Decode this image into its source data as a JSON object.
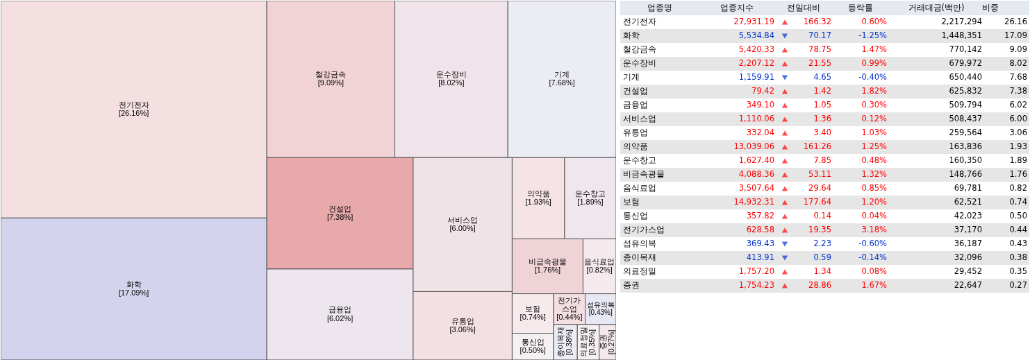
{
  "chart_data": [
    {
      "type": "other",
      "categories": [
        "전기전자",
        "화학",
        "철강금속",
        "운수장비",
        "기계",
        "건설업",
        "금융업",
        "서비스업",
        "유통업",
        "의약품",
        "운수창고",
        "비금속광물",
        "음식료업",
        "보험",
        "통신업",
        "전기가스업",
        "섬유의복",
        "종이목재",
        "의료정밀",
        "증권"
      ],
      "values": [
        26.16,
        17.09,
        9.09,
        8.02,
        7.68,
        7.38,
        6.02,
        6.0,
        3.06,
        1.93,
        1.89,
        1.76,
        0.82,
        0.74,
        0.5,
        0.44,
        0.43,
        0.38,
        0.35,
        0.27
      ],
      "value_labels": [
        "[26.16%]",
        "[17.09%]",
        "[9.09%]",
        "[8.02%]",
        "[7.68%]",
        "[7.38%]",
        "[6.02%]",
        "[6.00%]",
        "[3.06%]",
        "[1.93%]",
        "[1.89%]",
        "[1.76%]",
        "[0.82%]",
        "[0.74%]",
        "[0.50%]",
        "[0.44%]",
        "[0.43%]",
        "[0.38%]",
        "[0.35%]",
        "[0.27%]"
      ],
      "colors": [
        "#f4dfe1",
        "#d3d3ee",
        "#f2d3d5",
        "#f1e3ea",
        "#ececf4",
        "#e8a9aa",
        "#eee6ef",
        "#f0e3e8",
        "#f3e0e2",
        "#f5e3e5",
        "#f0e7ee",
        "#efd3d6",
        "#f4eaee",
        "#f6eaec",
        "#f5f1f3",
        "#f3dfe2",
        "#e8e8f4",
        "#ececf4",
        "#f6f0f2",
        "#f4e8ea"
      ]
    },
    {
      "type": "other",
      "xlabel": "업종명",
      "categories": [
        "전기전자",
        "화학",
        "철강금속",
        "운수장비",
        "기계",
        "건설업",
        "금융업",
        "서비스업",
        "유통업",
        "의약품",
        "운수창고",
        "비금속광물",
        "음식료업",
        "보험",
        "통신업",
        "전기가스업",
        "섬유의복",
        "종이목재",
        "의료정밀",
        "증권"
      ],
      "series": [
        {
          "name": "업종지수",
          "colors": [
            "#ff0000",
            "#0033cc",
            "#ff0000",
            "#ff0000",
            "#0033cc",
            "#ff0000",
            "#ff0000",
            "#ff0000",
            "#ff0000",
            "#ff0000",
            "#ff0000",
            "#ff0000",
            "#ff0000",
            "#ff0000",
            "#ff0000",
            "#ff0000",
            "#0033cc",
            "#0033cc",
            "#ff0000",
            "#ff0000"
          ],
          "values": [
            27931.19,
            5534.84,
            5420.33,
            2207.12,
            1159.91,
            79.42,
            349.1,
            1110.06,
            332.04,
            13039.06,
            1627.4,
            4088.36,
            3507.64,
            14932.31,
            357.82,
            628.58,
            369.43,
            413.91,
            1757.2,
            1754.23
          ],
          "value_labels": [
            "27,931.19",
            "5,534.84",
            "5,420.33",
            "2,207.12",
            "1,159.91",
            "79.42",
            "349.10",
            "1,110.06",
            "332.04",
            "13,039.06",
            "1,627.40",
            "4,088.36",
            "3,507.64",
            "14,932.31",
            "357.82",
            "628.58",
            "369.43",
            "413.91",
            "1,757.20",
            "1,754.23"
          ]
        },
        {
          "name": "전일대비",
          "colors": [
            "#ff0000",
            "#0033cc",
            "#ff0000",
            "#ff0000",
            "#0033cc",
            "#ff0000",
            "#ff0000",
            "#ff0000",
            "#ff0000",
            "#ff0000",
            "#ff0000",
            "#ff0000",
            "#ff0000",
            "#ff0000",
            "#ff0000",
            "#ff0000",
            "#0033cc",
            "#0033cc",
            "#ff0000",
            "#ff0000"
          ],
          "values": [
            166.32,
            70.17,
            78.75,
            21.55,
            4.65,
            1.42,
            1.05,
            1.36,
            3.4,
            161.26,
            7.85,
            53.11,
            29.64,
            177.64,
            0.14,
            19.35,
            2.23,
            0.59,
            1.34,
            28.86
          ],
          "value_labels": [
            "166.32",
            "70.17",
            "78.75",
            "21.55",
            "4.65",
            "1.42",
            "1.05",
            "1.36",
            "3.40",
            "161.26",
            "7.85",
            "53.11",
            "29.64",
            "177.64",
            "0.14",
            "19.35",
            "2.23",
            "0.59",
            "1.34",
            "28.86"
          ]
        },
        {
          "name": "등락률",
          "colors": [
            "#ff0000",
            "#0033cc",
            "#ff0000",
            "#ff0000",
            "#0033cc",
            "#ff0000",
            "#ff0000",
            "#ff0000",
            "#ff0000",
            "#ff0000",
            "#ff0000",
            "#ff0000",
            "#ff0000",
            "#ff0000",
            "#ff0000",
            "#ff0000",
            "#0033cc",
            "#0033cc",
            "#ff0000",
            "#ff0000"
          ],
          "values": [
            0.6,
            -1.25,
            1.47,
            0.99,
            -0.4,
            1.82,
            0.3,
            0.12,
            1.03,
            1.25,
            0.48,
            1.32,
            0.85,
            1.2,
            0.04,
            3.18,
            -0.6,
            -0.14,
            0.08,
            1.67
          ],
          "value_labels": [
            "0.60%",
            "-1.25%",
            "1.47%",
            "0.99%",
            "-0.40%",
            "1.82%",
            "0.30%",
            "0.12%",
            "1.03%",
            "1.25%",
            "0.48%",
            "1.32%",
            "0.85%",
            "1.20%",
            "0.04%",
            "3.18%",
            "-0.60%",
            "-0.14%",
            "0.08%",
            "1.67%"
          ]
        },
        {
          "name": "거래대금(백만)",
          "color": "#000000",
          "values": [
            2217294,
            1448351,
            770142,
            679972,
            650440,
            625832,
            509794,
            508437,
            259564,
            163836,
            160350,
            148766,
            69781,
            62521,
            42023,
            37170,
            36187,
            32096,
            29452,
            22647
          ],
          "value_labels": [
            "2,217,294",
            "1,448,351",
            "770,142",
            "679,972",
            "650,440",
            "625,832",
            "509,794",
            "508,437",
            "259,564",
            "163,836",
            "160,350",
            "148,766",
            "69,781",
            "62,521",
            "42,023",
            "37,170",
            "36,187",
            "32,096",
            "29,452",
            "22,647"
          ]
        },
        {
          "name": "비중",
          "color": "#000000",
          "values": [
            26.16,
            17.09,
            9.09,
            8.02,
            7.68,
            7.38,
            6.02,
            6.0,
            3.06,
            1.93,
            1.89,
            1.76,
            0.82,
            0.74,
            0.5,
            0.44,
            0.43,
            0.38,
            0.35,
            0.27
          ],
          "value_labels": [
            "26.16",
            "17.09",
            "9.09",
            "8.02",
            "7.68",
            "7.38",
            "6.02",
            "6.00",
            "3.06",
            "1.93",
            "1.89",
            "1.76",
            "0.82",
            "0.74",
            "0.50",
            "0.44",
            "0.43",
            "0.38",
            "0.35",
            "0.27"
          ]
        }
      ]
    }
  ]
}
